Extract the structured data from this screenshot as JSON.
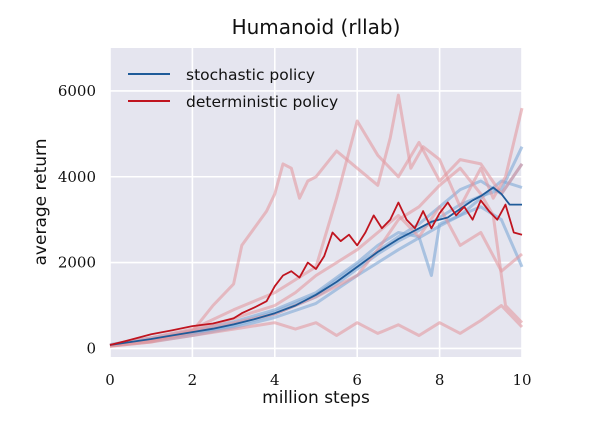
{
  "chart_data": {
    "type": "line",
    "title": "Humanoid (rllab)",
    "xlabel": "million steps",
    "ylabel": "average return",
    "xlim": [
      0,
      10
    ],
    "ylim": [
      -200,
      7000
    ],
    "xticks": [
      0,
      2,
      4,
      6,
      8,
      10
    ],
    "yticks": [
      0,
      2000,
      4000,
      6000
    ],
    "grid": true,
    "legend_position": "top-left",
    "colors": {
      "plot_background": "#e5e5ef",
      "grid": "#ffffff",
      "stochastic": "#1f5b99",
      "stochastic_runs": "#7fa9d6",
      "deterministic": "#c0141f",
      "deterministic_runs": "#e39aa0"
    },
    "series": [
      {
        "name": "stochastic policy",
        "role": "mean",
        "x": [
          0,
          0.5,
          1,
          1.5,
          2,
          2.5,
          3,
          3.5,
          4,
          4.5,
          5,
          5.5,
          6,
          6.5,
          7,
          7.5,
          7.8,
          8.2,
          8.5,
          8.8,
          9.0,
          9.3,
          9.5,
          9.7,
          10
        ],
        "values": [
          80,
          150,
          220,
          300,
          380,
          460,
          560,
          680,
          820,
          1000,
          1250,
          1550,
          1900,
          2250,
          2550,
          2800,
          2950,
          3050,
          3250,
          3450,
          3550,
          3750,
          3600,
          3350,
          3350
        ]
      },
      {
        "name": "deterministic policy",
        "role": "mean",
        "x": [
          0,
          0.5,
          1,
          1.5,
          2,
          2.5,
          3,
          3.2,
          3.5,
          3.8,
          4,
          4.2,
          4.4,
          4.6,
          4.8,
          5.0,
          5.2,
          5.4,
          5.6,
          5.8,
          6.0,
          6.2,
          6.4,
          6.6,
          6.8,
          7.0,
          7.2,
          7.4,
          7.6,
          7.8,
          8.0,
          8.2,
          8.4,
          8.6,
          8.8,
          9.0,
          9.2,
          9.4,
          9.6,
          9.8,
          10
        ],
        "values": [
          80,
          200,
          330,
          420,
          520,
          580,
          700,
          820,
          950,
          1100,
          1450,
          1700,
          1800,
          1650,
          2000,
          1850,
          2150,
          2700,
          2500,
          2650,
          2400,
          2700,
          3100,
          2800,
          3000,
          3400,
          3000,
          2800,
          3200,
          2800,
          3150,
          3400,
          3100,
          3300,
          3000,
          3450,
          3200,
          3000,
          3350,
          2700,
          2650
        ]
      },
      {
        "role": "run",
        "policy": "stochastic",
        "x": [
          0,
          1,
          2,
          3,
          4,
          5,
          5.5,
          6,
          6.5,
          7,
          7.5,
          8,
          8.5,
          9,
          9.5,
          10
        ],
        "values": [
          60,
          180,
          340,
          520,
          800,
          1200,
          1500,
          1850,
          2200,
          2500,
          2750,
          3050,
          3350,
          3550,
          3700,
          4700
        ]
      },
      {
        "role": "run",
        "policy": "stochastic",
        "x": [
          0,
          1,
          2,
          3,
          4,
          5,
          6,
          6.5,
          7,
          7.5,
          7.8,
          8,
          8.5,
          9,
          9.5,
          10
        ],
        "values": [
          90,
          250,
          420,
          620,
          900,
          1300,
          2000,
          2400,
          2700,
          2600,
          1700,
          2900,
          3100,
          3300,
          3000,
          1900
        ]
      },
      {
        "role": "run",
        "policy": "stochastic",
        "x": [
          0,
          1,
          2,
          3,
          4,
          5,
          6,
          7,
          7.5,
          8,
          8.5,
          9,
          9.5,
          10
        ],
        "values": [
          70,
          200,
          360,
          560,
          850,
          1250,
          1950,
          2600,
          2900,
          3300,
          3700,
          3900,
          3600,
          4300
        ]
      },
      {
        "role": "run",
        "policy": "stochastic",
        "x": [
          0,
          1,
          2,
          3,
          4,
          5,
          6,
          7,
          8,
          8.5,
          9,
          9.5,
          10
        ],
        "values": [
          60,
          160,
          300,
          480,
          720,
          1050,
          1700,
          2300,
          2850,
          3100,
          3500,
          3900,
          3750
        ]
      },
      {
        "role": "run",
        "policy": "deterministic",
        "x": [
          0,
          1,
          2,
          2.5,
          3,
          3.2,
          3.5,
          3.8,
          4,
          4.2,
          4.4,
          4.6,
          4.8,
          5,
          5.5,
          6,
          6.5,
          6.8,
          7,
          7.3,
          7.6,
          8,
          8.5,
          9,
          9.3,
          9.6,
          10
        ],
        "values": [
          50,
          150,
          400,
          1000,
          1500,
          2400,
          2800,
          3200,
          3600,
          4300,
          4200,
          3500,
          3900,
          4000,
          4600,
          4200,
          3800,
          4900,
          5900,
          4200,
          4700,
          4400,
          3300,
          4200,
          3500,
          4000,
          5600
        ]
      },
      {
        "role": "run",
        "policy": "deterministic",
        "x": [
          0,
          1,
          2,
          3,
          4,
          5,
          5.5,
          6,
          6.5,
          7,
          7.5,
          8,
          8.5,
          9,
          9.5,
          10
        ],
        "values": [
          80,
          250,
          450,
          900,
          1300,
          1900,
          3500,
          5300,
          4500,
          4000,
          4800,
          3900,
          4400,
          4300,
          3600,
          4300
        ]
      },
      {
        "role": "run",
        "policy": "deterministic",
        "x": [
          0,
          1,
          2,
          3,
          4,
          4.5,
          5,
          5.5,
          6,
          6.5,
          7,
          7.5,
          8,
          8.5,
          9,
          9.5,
          10
        ],
        "values": [
          60,
          200,
          420,
          700,
          1000,
          1300,
          1700,
          2000,
          2300,
          2700,
          3100,
          2600,
          3300,
          2400,
          2700,
          1800,
          2200
        ]
      },
      {
        "role": "run",
        "policy": "deterministic",
        "x": [
          0,
          1,
          2,
          3,
          4,
          5,
          6,
          6.5,
          7,
          7.5,
          8,
          8.5,
          9,
          9.3,
          9.6,
          10
        ],
        "values": [
          70,
          180,
          380,
          600,
          800,
          1200,
          1700,
          2300,
          3000,
          3300,
          3800,
          4200,
          3600,
          3100,
          1000,
          600
        ]
      },
      {
        "role": "run",
        "policy": "deterministic",
        "x": [
          0,
          1,
          2,
          3,
          4,
          4.5,
          5,
          5.5,
          6,
          6.5,
          7,
          7.5,
          8,
          8.5,
          9,
          9.5,
          10
        ],
        "values": [
          50,
          150,
          300,
          450,
          600,
          450,
          600,
          300,
          600,
          350,
          550,
          300,
          600,
          350,
          650,
          1000,
          500
        ]
      }
    ]
  }
}
